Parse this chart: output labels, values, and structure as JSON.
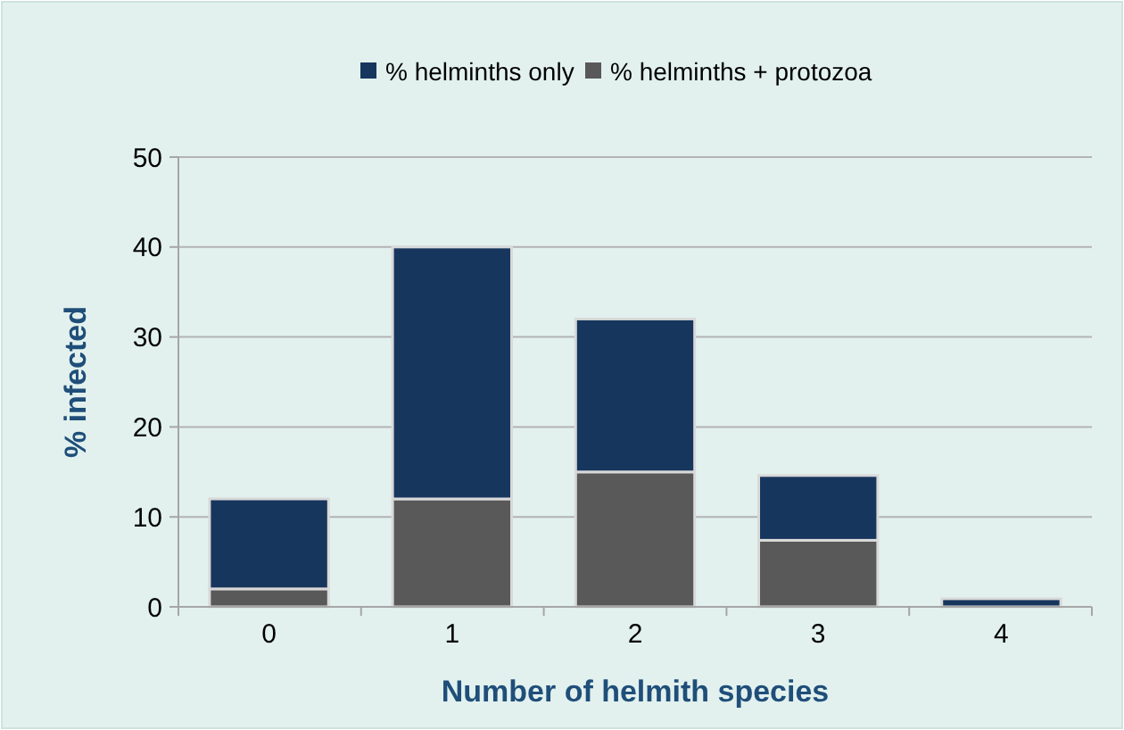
{
  "chart_data": {
    "type": "bar",
    "stacked": true,
    "xlabel": "Number of helmith species",
    "ylabel": "% infected",
    "categories": [
      "0",
      "1",
      "2",
      "3",
      "4"
    ],
    "series": [
      {
        "name": "% helminths + protozoa",
        "color": "#595959",
        "values": [
          2,
          12,
          15,
          7.4,
          0
        ]
      },
      {
        "name": "% helminths only",
        "color": "#17365d",
        "values": [
          10,
          28,
          17,
          7.2,
          0.9
        ]
      }
    ],
    "ylim": [
      0,
      50
    ],
    "yticks": [
      0,
      10,
      20,
      30,
      40,
      50
    ],
    "grid": "y",
    "legend": "top"
  }
}
